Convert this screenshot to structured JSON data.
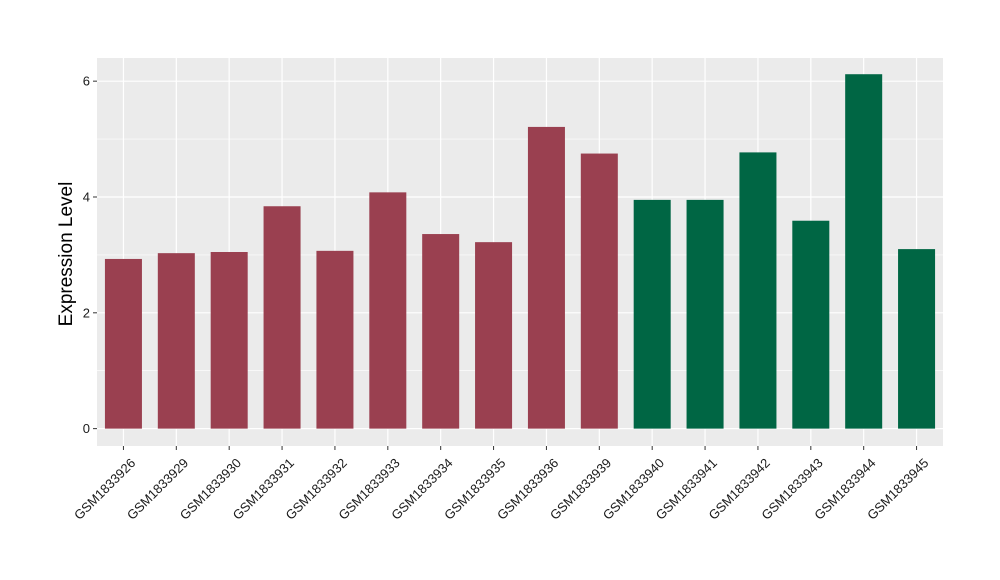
{
  "chart_data": {
    "type": "bar",
    "title": "",
    "xlabel": "",
    "ylabel": "Expression Level",
    "ylim": [
      -0.3,
      6.4
    ],
    "yticks": [
      0,
      2,
      4,
      6
    ],
    "grid": true,
    "legend": "none",
    "categories": [
      "GSM1833926",
      "GSM1833929",
      "GSM1833930",
      "GSM1833931",
      "GSM1833932",
      "GSM1833933",
      "GSM1833934",
      "GSM1833935",
      "GSM1833936",
      "GSM1833939",
      "GSM1833940",
      "GSM1833941",
      "GSM1833942",
      "GSM1833943",
      "GSM1833944",
      "GSM1833945"
    ],
    "values": [
      2.93,
      3.03,
      3.05,
      3.84,
      3.07,
      4.08,
      3.36,
      3.22,
      5.21,
      4.75,
      3.95,
      3.95,
      4.77,
      3.59,
      6.12,
      3.1
    ],
    "bar_colors": [
      "#9a4050",
      "#9a4050",
      "#9a4050",
      "#9a4050",
      "#9a4050",
      "#9a4050",
      "#9a4050",
      "#9a4050",
      "#9a4050",
      "#9a4050",
      "#006644",
      "#006644",
      "#006644",
      "#006644",
      "#006644",
      "#006644"
    ],
    "colors": {
      "panel_background": "#ebebeb",
      "gridline": "#ffffff",
      "tick_mark": "#333333"
    }
  }
}
